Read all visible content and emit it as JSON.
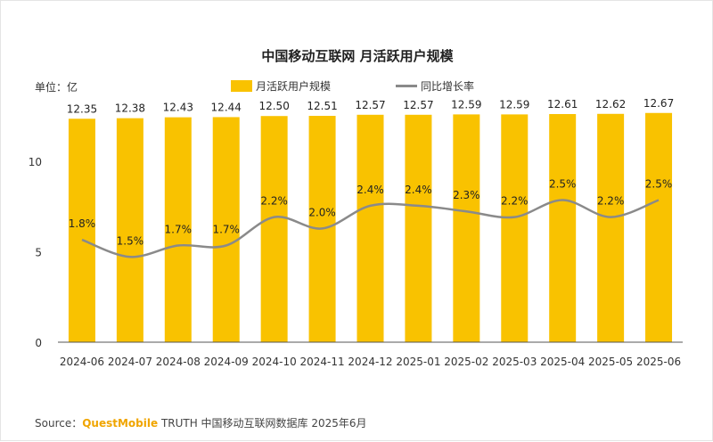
{
  "chart_data": {
    "type": "bar",
    "title": "中国移动互联网 月活跃用户规模",
    "unit_label": "单位：亿",
    "categories": [
      "2024-06",
      "2024-07",
      "2024-08",
      "2024-09",
      "2024-10",
      "2024-11",
      "2024-12",
      "2025-01",
      "2025-02",
      "2025-03",
      "2025-04",
      "2025-05",
      "2025-06"
    ],
    "series": [
      {
        "name": "月活跃用户规模",
        "type": "bar",
        "color": "#f9c200",
        "values": [
          12.35,
          12.38,
          12.43,
          12.44,
          12.5,
          12.51,
          12.57,
          12.57,
          12.59,
          12.59,
          12.61,
          12.62,
          12.67
        ],
        "labels": [
          "12.35",
          "12.38",
          "12.43",
          "12.44",
          "12.50",
          "12.51",
          "12.57",
          "12.57",
          "12.59",
          "12.59",
          "12.61",
          "12.62",
          "12.67"
        ]
      },
      {
        "name": "同比增长率",
        "type": "line",
        "color": "#8a8a8a",
        "values": [
          1.8,
          1.5,
          1.7,
          1.7,
          2.2,
          2.0,
          2.4,
          2.4,
          2.3,
          2.2,
          2.5,
          2.2,
          2.5
        ],
        "labels": [
          "1.8%",
          "1.5%",
          "1.7%",
          "1.7%",
          "2.2%",
          "2.0%",
          "2.4%",
          "2.4%",
          "2.3%",
          "2.2%",
          "2.5%",
          "2.2%",
          "2.5%"
        ]
      }
    ],
    "yticks": [
      "0",
      "5",
      "10"
    ],
    "ylim": [
      0,
      13.2
    ],
    "line_ylim": [
      0,
      4.2
    ],
    "legend_position": "top-center",
    "grid": false
  },
  "source": {
    "prefix": "Source：",
    "brand": "QuestMobile",
    "rest": " TRUTH 中国移动互联网数据库 2025年6月"
  }
}
